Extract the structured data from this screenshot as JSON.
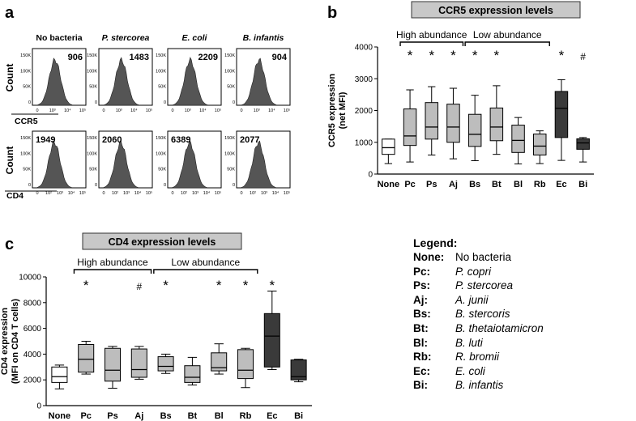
{
  "panel_labels": {
    "a": "a",
    "b": "b",
    "c": "c"
  },
  "histograms": {
    "row_titles": [
      "No bacteria",
      "P. stercorea",
      "E. coli",
      "B. infantis"
    ],
    "row_title_italic": [
      false,
      true,
      true,
      true
    ],
    "count_label": "Count",
    "ccr5_label": "CCR5",
    "cd4_label": "CD4",
    "ccr5_values": [
      "906",
      "1483",
      "2209",
      "904"
    ],
    "cd4_values": [
      "1949",
      "2060",
      "6389",
      "2077"
    ],
    "y_ticks": [
      "150K",
      "100K",
      "50K",
      "0"
    ],
    "x_ticks": [
      "0",
      "10³",
      "10⁴",
      "10⁵"
    ],
    "x_ticks_alt": [
      "0",
      "10²",
      "10³",
      "10⁴",
      "10⁵"
    ],
    "fill_color": "#555555"
  },
  "chart_data": [
    {
      "type": "box",
      "title": "CCR5 expression levels",
      "ylabel": "CCR5 expression (net MFI)",
      "ylabel_lines": [
        "CCR5 expression",
        "(net MFI)"
      ],
      "ylim": [
        0,
        4000
      ],
      "yticks": [
        "0",
        "1000",
        "2000",
        "3000",
        "4000"
      ],
      "yticks_num": [
        0,
        1000,
        2000,
        3000,
        4000
      ],
      "categories": [
        "None",
        "Pc",
        "Ps",
        "Aj",
        "Bs",
        "Bt",
        "Bl",
        "Rb",
        "Ec",
        "Bi"
      ],
      "boxes": [
        {
          "min": 330,
          "q1": 620,
          "median": 830,
          "q3": 1100,
          "max": 1100
        },
        {
          "min": 380,
          "q1": 900,
          "median": 1200,
          "q3": 2050,
          "max": 2650
        },
        {
          "min": 600,
          "q1": 1100,
          "median": 1480,
          "q3": 2250,
          "max": 2750
        },
        {
          "min": 480,
          "q1": 1000,
          "median": 1480,
          "q3": 2200,
          "max": 2700
        },
        {
          "min": 420,
          "q1": 870,
          "median": 1250,
          "q3": 1880,
          "max": 2480
        },
        {
          "min": 620,
          "q1": 1050,
          "median": 1480,
          "q3": 2080,
          "max": 2780
        },
        {
          "min": 320,
          "q1": 680,
          "median": 1060,
          "q3": 1540,
          "max": 1780
        },
        {
          "min": 330,
          "q1": 600,
          "median": 880,
          "q3": 1260,
          "max": 1360
        },
        {
          "min": 430,
          "q1": 1150,
          "median": 2070,
          "q3": 2600,
          "max": 2970
        },
        {
          "min": 380,
          "q1": 780,
          "median": 980,
          "q3": 1110,
          "max": 1150
        }
      ],
      "colors": [
        "#ffffff",
        "#bdbdbd",
        "#bdbdbd",
        "#bdbdbd",
        "#bdbdbd",
        "#bdbdbd",
        "#bdbdbd",
        "#bdbdbd",
        "#3a3a3a",
        "#3a3a3a"
      ],
      "annotations": [
        "",
        "*",
        "*",
        "*",
        "*",
        "*",
        "",
        "",
        "*",
        "#"
      ],
      "group_labels": [
        {
          "label": "High abundance",
          "from": 1,
          "to": 3
        },
        {
          "label": "Low abundance",
          "from": 4,
          "to": 7
        }
      ]
    },
    {
      "type": "box",
      "title": "CD4 expression levels",
      "ylabel": "CD4 expression (MFI on CD4 T cells)",
      "ylabel_lines": [
        "CD4 expression",
        "(MFI on CD4 T cells)"
      ],
      "ylim": [
        0,
        10000
      ],
      "yticks": [
        "0",
        "2000",
        "4000",
        "6000",
        "8000",
        "10000"
      ],
      "yticks_num": [
        0,
        2000,
        4000,
        6000,
        8000,
        10000
      ],
      "categories": [
        "None",
        "Pc",
        "Ps",
        "Aj",
        "Bs",
        "Bt",
        "Bl",
        "Rb",
        "Ec",
        "Bi"
      ],
      "boxes": [
        {
          "min": 1300,
          "q1": 1800,
          "median": 2250,
          "q3": 3000,
          "max": 3150
        },
        {
          "min": 2450,
          "q1": 2600,
          "median": 3600,
          "q3": 4750,
          "max": 5000
        },
        {
          "min": 1350,
          "q1": 1900,
          "median": 2750,
          "q3": 4450,
          "max": 4600
        },
        {
          "min": 2050,
          "q1": 2200,
          "median": 2800,
          "q3": 4400,
          "max": 4600
        },
        {
          "min": 2500,
          "q1": 2700,
          "median": 3050,
          "q3": 3800,
          "max": 4000
        },
        {
          "min": 1600,
          "q1": 1800,
          "median": 2200,
          "q3": 3100,
          "max": 3750
        },
        {
          "min": 2450,
          "q1": 2700,
          "median": 2950,
          "q3": 4100,
          "max": 4800
        },
        {
          "min": 1400,
          "q1": 2100,
          "median": 2750,
          "q3": 4350,
          "max": 4450
        },
        {
          "min": 2800,
          "q1": 3000,
          "median": 5400,
          "q3": 7150,
          "max": 8900
        },
        {
          "min": 1850,
          "q1": 2000,
          "median": 2250,
          "q3": 3550,
          "max": 3600
        }
      ],
      "colors": [
        "#ffffff",
        "#bdbdbd",
        "#bdbdbd",
        "#bdbdbd",
        "#bdbdbd",
        "#bdbdbd",
        "#bdbdbd",
        "#bdbdbd",
        "#3a3a3a",
        "#3a3a3a"
      ],
      "annotations": [
        "",
        "*",
        "",
        "#",
        "*",
        "",
        "*",
        "*",
        "*",
        ""
      ],
      "group_labels": [
        {
          "label": "High abundance",
          "from": 1,
          "to": 3
        },
        {
          "label": "Low abundance",
          "from": 4,
          "to": 7
        }
      ]
    }
  ],
  "legend": {
    "title": "Legend:",
    "items": [
      {
        "key": "None:",
        "value": "No bacteria",
        "italic": false
      },
      {
        "key": "Pc:",
        "value": "P. copri",
        "italic": true
      },
      {
        "key": "Ps:",
        "value": "P. stercorea",
        "italic": true
      },
      {
        "key": "Aj:",
        "value": "A. junii",
        "italic": true
      },
      {
        "key": "Bs:",
        "value": "B. stercoris",
        "italic": true
      },
      {
        "key": "Bt:",
        "value": "B. thetaiotamicron",
        "italic": true
      },
      {
        "key": "Bl:",
        "value": "B. luti",
        "italic": true
      },
      {
        "key": "Rb:",
        "value": "R. bromii",
        "italic": true
      },
      {
        "key": "Ec:",
        "value": "E. coli",
        "italic": true
      },
      {
        "key": "Bi:",
        "value": "B. infantis",
        "italic": true
      }
    ]
  },
  "colors": {
    "title_box": "#c8c8c8",
    "gray_box": "#bdbdbd",
    "dark_box": "#3a3a3a",
    "hist_fill": "#555555"
  }
}
